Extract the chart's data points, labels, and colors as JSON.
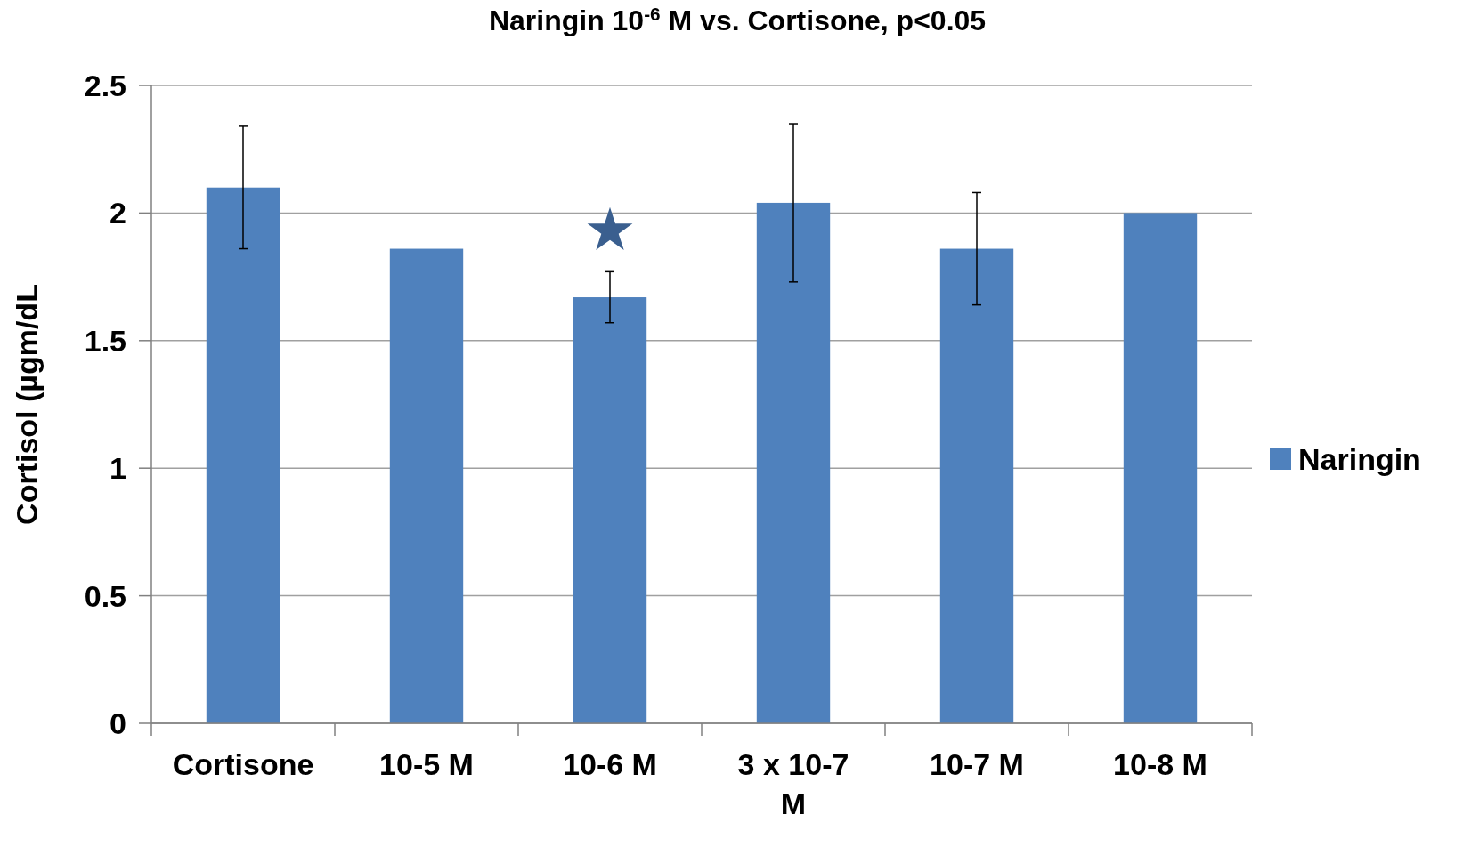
{
  "chart_data": {
    "type": "bar",
    "title": "Naringin 10$^{-6}$ M vs. Cortisone, p<0.05",
    "ylabel": "Cortisol (µgm/dL",
    "categories": [
      "Cortisone",
      "10-5 M",
      "10-6 M",
      "3 x 10-7 M",
      "10-7 M",
      "10-8 M"
    ],
    "series": [
      {
        "name": "Naringin",
        "color": "#4f81bd",
        "values": [
          2.1,
          1.86,
          1.67,
          2.04,
          1.86,
          2.0
        ],
        "errors": [
          0.24,
          null,
          0.1,
          0.31,
          0.22,
          null
        ]
      },
      {
        "type": "scatter",
        "marker": "star",
        "color": "#3a5f8f",
        "x": [
          "10-6 M"
        ],
        "values": [
          1.93
        ]
      }
    ],
    "ylim": [
      0,
      2.5
    ],
    "yticks": [
      0,
      0.5,
      1,
      1.5,
      2,
      2.5
    ],
    "grid": "y",
    "legend": "right"
  }
}
